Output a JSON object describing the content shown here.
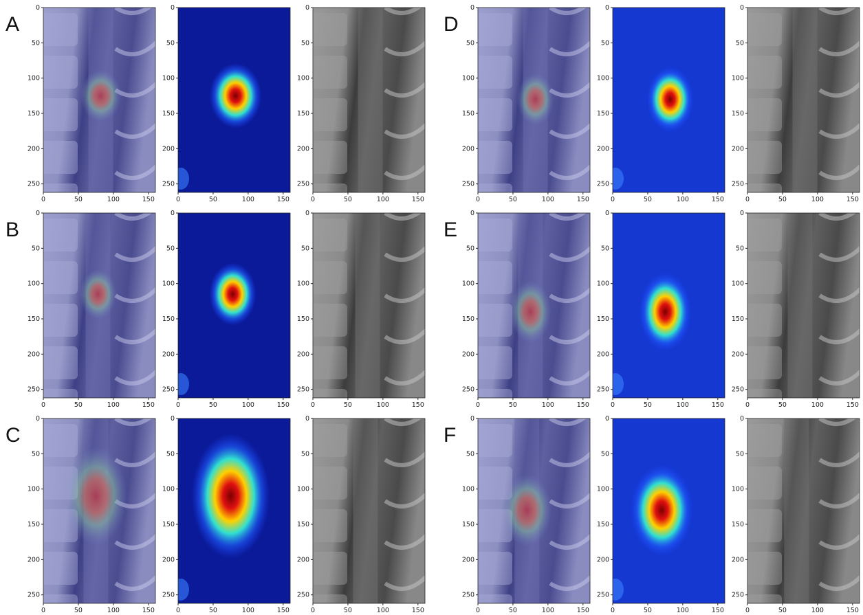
{
  "axes": {
    "xlim": [
      0,
      160
    ],
    "ylim": [
      0,
      262
    ],
    "xticks": [
      0,
      50,
      100,
      150
    ],
    "yticks": [
      0,
      50,
      100,
      150,
      200,
      250
    ]
  },
  "panels": [
    {
      "label": "A"
    },
    {
      "label": "B"
    },
    {
      "label": "C"
    },
    {
      "label": "D"
    },
    {
      "label": "E"
    },
    {
      "label": "F"
    }
  ]
}
